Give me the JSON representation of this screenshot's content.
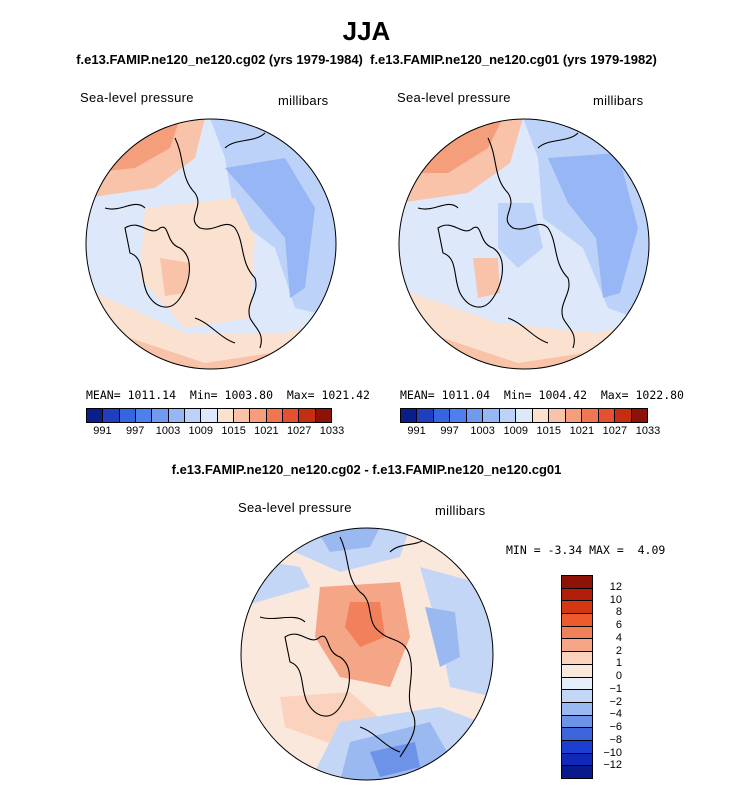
{
  "title": "JJA",
  "top_subtitle": "f.e13.FAMIP.ne120_ne120.cg02 (yrs 1979-1984)  f.e13.FAMIP.ne120_ne120.cg01 (yrs 1979-1982)",
  "diff_subtitle": "f.e13.FAMIP.ne120_ne120.cg02 - f.e13.FAMIP.ne120_ne120.cg01",
  "panels": [
    {
      "variable": "Sea-level pressure",
      "units": "millibars",
      "stats": {
        "mean_label": "MEAN=",
        "mean": "1011.14",
        "min_label": "Min=",
        "min": "1003.80",
        "max_label": "Max=",
        "max": "1021.42"
      }
    },
    {
      "variable": "Sea-level pressure",
      "units": "millibars",
      "stats": {
        "mean_label": "MEAN=",
        "mean": "1011.04",
        "min_label": "Min=",
        "min": "1004.42",
        "max_label": "Max=",
        "max": "1022.80"
      }
    }
  ],
  "diff_panel": {
    "variable": "Sea-level pressure",
    "units": "millibars",
    "stats": {
      "min_label": "MIN =",
      "min": "-3.34",
      "max_label": "MAX =",
      "max": "4.09"
    }
  },
  "abs_colorbar": {
    "colors": [
      "#0b1e8c",
      "#1f3fc0",
      "#3366e0",
      "#4d80ee",
      "#7099f2",
      "#96b6f5",
      "#bcd2f8",
      "#dde8fb",
      "#fbe1d0",
      "#f8c3a8",
      "#f49e7c",
      "#ef7650",
      "#e5512e",
      "#c62e10",
      "#8f1208"
    ],
    "labels": [
      "991",
      "997",
      "1003",
      "1009",
      "1015",
      "1021",
      "1027",
      "1033"
    ]
  },
  "diff_colorbar": {
    "colors": [
      "#8f1208",
      "#b31e0c",
      "#d43813",
      "#ee5a2d",
      "#f2805a",
      "#f5a687",
      "#fbd2bd",
      "#fbe8dd",
      "#e6eefb",
      "#c3d6f6",
      "#9bb9f1",
      "#6c93e8",
      "#3d66dd",
      "#1d3fd1",
      "#1128b8",
      "#091a8c"
    ],
    "labels": [
      "12",
      "10",
      "8",
      "6",
      "4",
      "2",
      "1",
      "0",
      "−1",
      "−2",
      "−4",
      "−6",
      "−8",
      "−10",
      "−12"
    ]
  }
}
